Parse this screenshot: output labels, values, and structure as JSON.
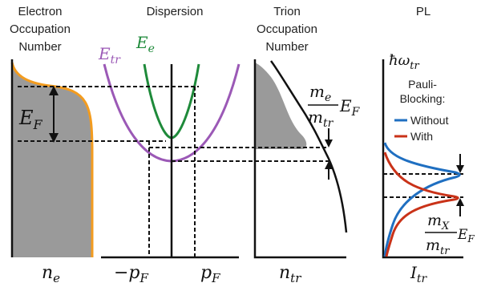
{
  "colors": {
    "orange": "#f39c1f",
    "gray_fill": "#9a9a9a",
    "purple": "#9b59b6",
    "green": "#1e8a3a",
    "blue": "#1f6fc1",
    "red": "#c93218",
    "ink": "#111111"
  },
  "panels": {
    "electron": {
      "title_lines": [
        "Electron",
        "Occupation",
        "Number"
      ],
      "fermi_energy": "E",
      "fermi_energy_sub": "F",
      "x_label": "n",
      "x_label_sub": "e"
    },
    "dispersion": {
      "title": "Dispersion",
      "trion_curve": "E",
      "trion_curve_sub": "tr",
      "electron_curve": "E",
      "electron_curve_sub": "e",
      "neg_momentum_prefix": "−p",
      "momentum": "p",
      "momentum_sub": "F"
    },
    "trion": {
      "title_lines": [
        "Trion",
        "Occupation",
        "Number"
      ],
      "ratio_numerator": "m",
      "ratio_numerator_sub": "e",
      "ratio_denominator": "m",
      "ratio_denominator_sub": "tr",
      "ratio_suffix": "E",
      "ratio_suffix_sub": "F",
      "x_label": "n",
      "x_label_sub": "tr"
    },
    "pl": {
      "title": "PL",
      "y_label": "ħω",
      "y_label_sub": "tr",
      "legend_title_lines": [
        "Pauli-",
        "Blocking:"
      ],
      "legend_items": [
        {
          "label": "Without",
          "color": "#1f6fc1"
        },
        {
          "label": "With",
          "color": "#c93218"
        }
      ],
      "ratio_numerator": "m",
      "ratio_numerator_sub": "X",
      "ratio_denominator": "m",
      "ratio_denominator_sub": "tr",
      "ratio_suffix": "E",
      "ratio_suffix_sub": "F",
      "x_label": "I",
      "x_label_sub": "tr"
    }
  }
}
